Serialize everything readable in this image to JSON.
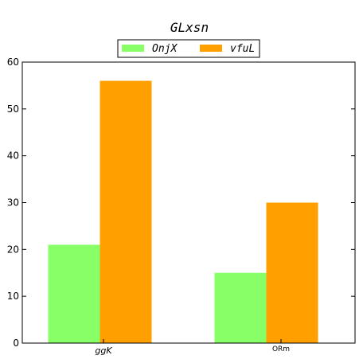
{
  "chart_data": {
    "type": "bar",
    "title": "GLxsn",
    "xlabel": "",
    "ylabel": "",
    "categories": [
      "ggK",
      "ORm"
    ],
    "series": [
      {
        "name": "OnjX",
        "values": [
          21,
          15
        ],
        "color": "#88ff66"
      },
      {
        "name": "vfuL",
        "values": [
          56,
          30
        ],
        "color": "#ffa000"
      }
    ],
    "ylim": [
      0,
      60
    ],
    "yticks": [
      0,
      10,
      20,
      30,
      40,
      50,
      60
    ],
    "grid": false,
    "legend_position": "top-center"
  }
}
